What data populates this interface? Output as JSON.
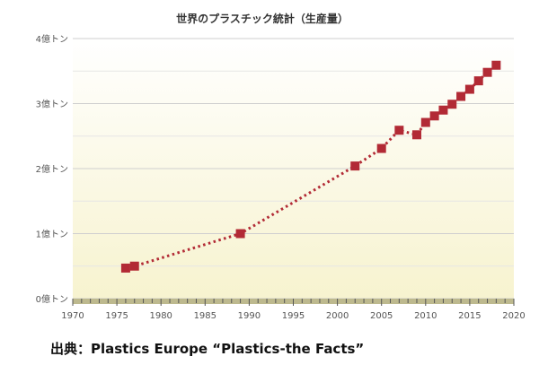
{
  "chart_data": {
    "type": "line",
    "title": "世界のプラスチック統計（生産量）",
    "xlabel": "",
    "ylabel": "",
    "xlim": [
      1970,
      2020
    ],
    "ylim": [
      0,
      4
    ],
    "x_ticks": [
      "1970",
      "1975",
      "1980",
      "1985",
      "1990",
      "1995",
      "2000",
      "2005",
      "2010",
      "2015",
      "2020"
    ],
    "y_ticks": [
      "0億トン",
      "1億トン",
      "2億トン",
      "3億トン",
      "4億トン"
    ],
    "grid": true,
    "line_style": "dotted",
    "series": [
      {
        "color": "#b22a35",
        "x": [
          1976,
          1977,
          1989,
          2002,
          2005,
          2007,
          2009,
          2010,
          2011,
          2012,
          2013,
          2014,
          2015,
          2016,
          2017,
          2018
        ],
        "y": [
          0.47,
          0.5,
          1.0,
          2.04,
          2.31,
          2.59,
          2.52,
          2.71,
          2.81,
          2.9,
          2.99,
          3.11,
          3.22,
          3.35,
          3.48,
          3.59
        ]
      }
    ]
  },
  "source": "出典：Plastics Europe “Plastics-the Facts”"
}
